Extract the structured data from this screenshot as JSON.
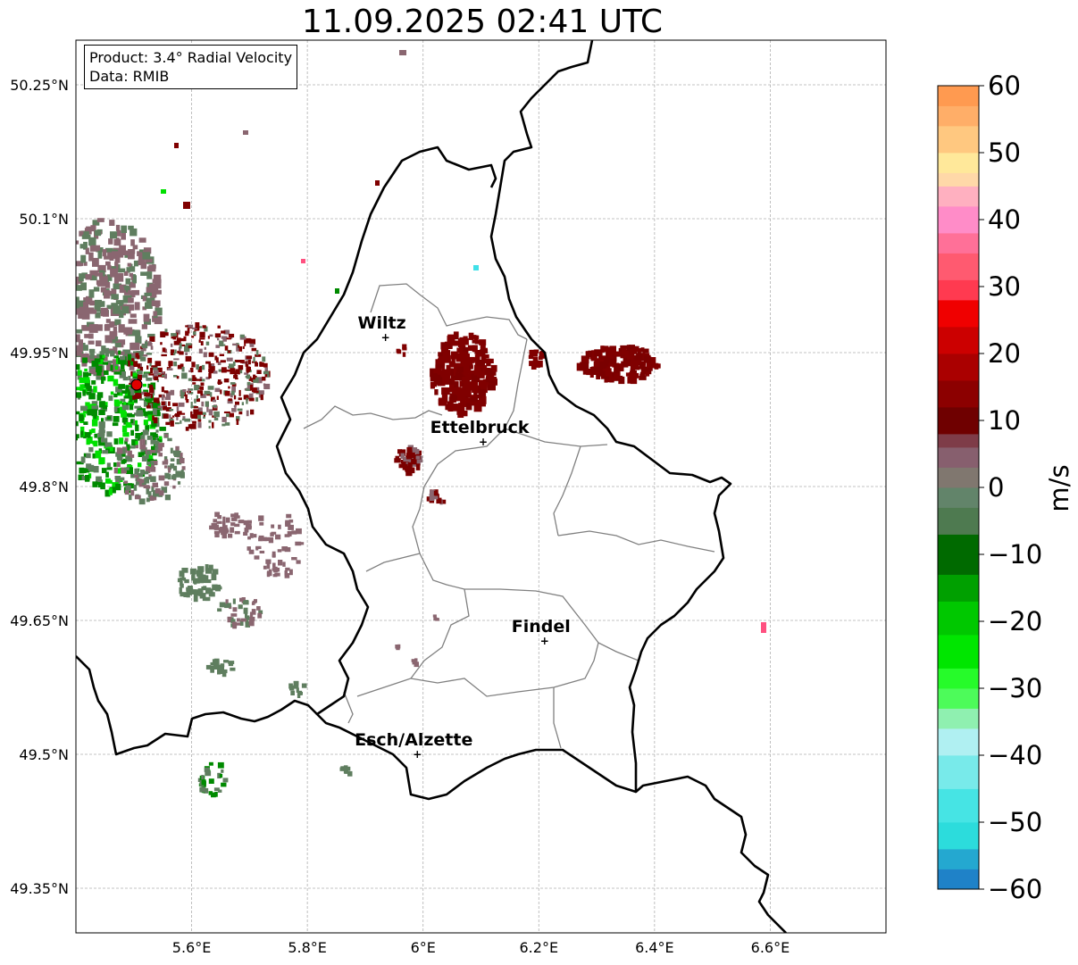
{
  "title": "11.09.2025 02:41 UTC",
  "info": {
    "product": "Product: 3.4° Radial Velocity",
    "data": "Data: RMIB"
  },
  "map": {
    "lon_range": [
      5.4,
      6.8
    ],
    "lat_range": [
      49.3,
      50.3
    ],
    "lon_ticks": [
      {
        "value": 5.6,
        "label": "5.6°E"
      },
      {
        "value": 5.8,
        "label": "5.8°E"
      },
      {
        "value": 6.0,
        "label": "6°E"
      },
      {
        "value": 6.2,
        "label": "6.2°E"
      },
      {
        "value": 6.4,
        "label": "6.4°E"
      },
      {
        "value": 6.6,
        "label": "6.6°E"
      }
    ],
    "lat_ticks": [
      {
        "value": 50.25,
        "label": "50.25°N"
      },
      {
        "value": 50.1,
        "label": "50.1°N"
      },
      {
        "value": 49.95,
        "label": "49.95°N"
      },
      {
        "value": 49.8,
        "label": "49.8°N"
      },
      {
        "value": 49.65,
        "label": "49.65°N"
      },
      {
        "value": 49.5,
        "label": "49.5°N"
      },
      {
        "value": 49.35,
        "label": "49.35°N"
      }
    ],
    "cities": [
      {
        "name": "Wiltz",
        "lon": 5.935,
        "lat": 49.967
      },
      {
        "name": "Ettelbruck",
        "lon": 6.104,
        "lat": 49.85
      },
      {
        "name": "Findel",
        "lon": 6.21,
        "lat": 49.627
      },
      {
        "name": "Esch/Alzette",
        "lon": 5.99,
        "lat": 49.5
      }
    ],
    "radar_site": {
      "lon": 5.505,
      "lat": 49.914
    }
  },
  "colorbar": {
    "label": "m/s",
    "min": -60,
    "max": 60,
    "ticks": [
      {
        "value": 60,
        "label": "60"
      },
      {
        "value": 50,
        "label": "50"
      },
      {
        "value": 40,
        "label": "40"
      },
      {
        "value": 30,
        "label": "30"
      },
      {
        "value": 20,
        "label": "20"
      },
      {
        "value": 10,
        "label": "10"
      },
      {
        "value": 0,
        "label": "0"
      },
      {
        "value": -10,
        "label": "−10"
      },
      {
        "value": -20,
        "label": "−20"
      },
      {
        "value": -30,
        "label": "−30"
      },
      {
        "value": -40,
        "label": "−40"
      },
      {
        "value": -50,
        "label": "−50"
      },
      {
        "value": -60,
        "label": "−60"
      }
    ],
    "bands": [
      {
        "from": -60,
        "to": -57,
        "color": "#1f82c8"
      },
      {
        "from": -57,
        "to": -54,
        "color": "#24a8d0"
      },
      {
        "from": -54,
        "to": -50,
        "color": "#2cdcdc"
      },
      {
        "from": -50,
        "to": -45,
        "color": "#46e4e4"
      },
      {
        "from": -45,
        "to": -40,
        "color": "#78eaea"
      },
      {
        "from": -40,
        "to": -36,
        "color": "#b0f0f2"
      },
      {
        "from": -36,
        "to": -33,
        "color": "#8ff0b0"
      },
      {
        "from": -33,
        "to": -30,
        "color": "#4dfb5a"
      },
      {
        "from": -30,
        "to": -27,
        "color": "#26fb2a"
      },
      {
        "from": -27,
        "to": -22,
        "color": "#00e600"
      },
      {
        "from": -22,
        "to": -17,
        "color": "#00c800"
      },
      {
        "from": -17,
        "to": -13,
        "color": "#00a000"
      },
      {
        "from": -13,
        "to": -7,
        "color": "#006a00"
      },
      {
        "from": -7,
        "to": -3,
        "color": "#4e7a50"
      },
      {
        "from": -3,
        "to": 0,
        "color": "#62846a"
      },
      {
        "from": 0,
        "to": 3,
        "color": "#80776f"
      },
      {
        "from": 3,
        "to": 6,
        "color": "#875f6e"
      },
      {
        "from": 6,
        "to": 8,
        "color": "#7e3c48"
      },
      {
        "from": 8,
        "to": 12,
        "color": "#6f0000"
      },
      {
        "from": 12,
        "to": 16,
        "color": "#8c0000"
      },
      {
        "from": 16,
        "to": 20,
        "color": "#aa0000"
      },
      {
        "from": 20,
        "to": 24,
        "color": "#cc0000"
      },
      {
        "from": 24,
        "to": 28,
        "color": "#f00000"
      },
      {
        "from": 28,
        "to": 31,
        "color": "#ff3a50"
      },
      {
        "from": 31,
        "to": 35,
        "color": "#ff5a70"
      },
      {
        "from": 35,
        "to": 38,
        "color": "#ff7098"
      },
      {
        "from": 38,
        "to": 42,
        "color": "#ff8cc8"
      },
      {
        "from": 42,
        "to": 45,
        "color": "#ffb0c0"
      },
      {
        "from": 45,
        "to": 47,
        "color": "#ffd8a8"
      },
      {
        "from": 47,
        "to": 50,
        "color": "#ffe89a"
      },
      {
        "from": 50,
        "to": 54,
        "color": "#ffc880"
      },
      {
        "from": 54,
        "to": 57,
        "color": "#ffae68"
      },
      {
        "from": 57,
        "to": 60,
        "color": "#ff9a50"
      }
    ]
  },
  "echo_colors": {
    "dark_red": "#7a0000",
    "maroon": "#800000",
    "mauve": "#8a6670",
    "gray_green": "#5f7e5f",
    "green": "#008a00",
    "bright_green": "#00e000",
    "pink": "#ff5080",
    "cyan": "#40e0e8"
  }
}
